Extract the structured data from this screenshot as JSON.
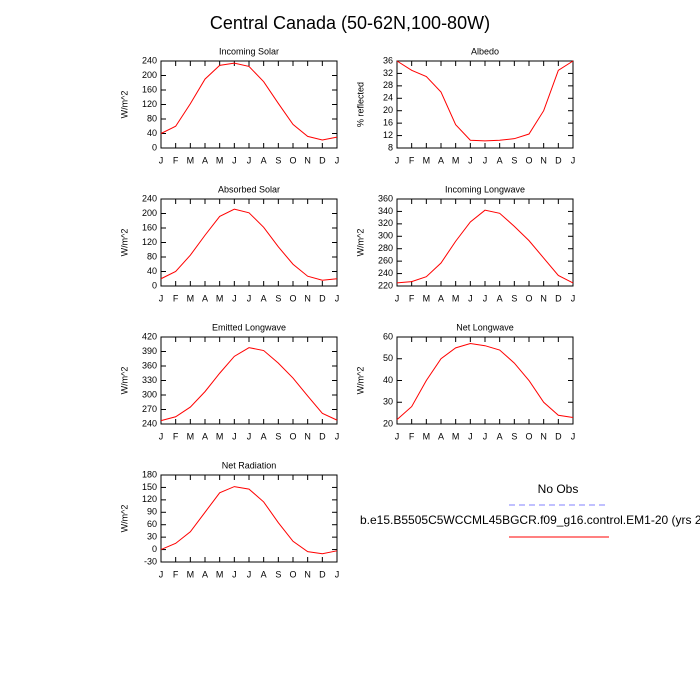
{
  "title": "Central Canada (50-62N,100-80W)",
  "chart_data": [
    {
      "type": "line",
      "title": "Incoming Solar",
      "ylabel": "W/m^2",
      "categories": [
        "J",
        "F",
        "M",
        "A",
        "M",
        "J",
        "J",
        "A",
        "S",
        "O",
        "N",
        "D",
        "J"
      ],
      "series": [
        {
          "color": "#ff0000",
          "values": [
            40,
            60,
            122,
            190,
            228,
            234,
            225,
            183,
            123,
            65,
            32,
            22,
            30
          ]
        }
      ],
      "ylim": [
        0,
        240
      ],
      "yticks": [
        0,
        40,
        80,
        120,
        160,
        200,
        240
      ]
    },
    {
      "type": "line",
      "title": "Albedo",
      "ylabel": "% reflected",
      "categories": [
        "J",
        "F",
        "M",
        "A",
        "M",
        "J",
        "J",
        "A",
        "S",
        "O",
        "N",
        "D",
        "J"
      ],
      "series": [
        {
          "color": "#ff0000",
          "values": [
            36,
            33,
            31,
            26,
            15.5,
            10.5,
            10.3,
            10.5,
            11,
            12.5,
            20,
            33,
            36
          ]
        }
      ],
      "ylim": [
        8,
        36
      ],
      "yticks": [
        8,
        12,
        16,
        20,
        24,
        28,
        32,
        36
      ]
    },
    {
      "type": "line",
      "title": "Absorbed Solar",
      "ylabel": "W/m^2",
      "categories": [
        "J",
        "F",
        "M",
        "A",
        "M",
        "J",
        "J",
        "A",
        "S",
        "O",
        "N",
        "D",
        "J"
      ],
      "series": [
        {
          "color": "#ff0000",
          "values": [
            20,
            40,
            85,
            140,
            192,
            212,
            202,
            162,
            108,
            60,
            27,
            16,
            20
          ]
        }
      ],
      "ylim": [
        0,
        240
      ],
      "yticks": [
        0,
        40,
        80,
        120,
        160,
        200,
        240
      ]
    },
    {
      "type": "line",
      "title": "Incoming Longwave",
      "ylabel": "W/m^2",
      "categories": [
        "J",
        "F",
        "M",
        "A",
        "M",
        "J",
        "J",
        "A",
        "S",
        "O",
        "N",
        "D",
        "J"
      ],
      "series": [
        {
          "color": "#ff0000",
          "values": [
            225,
            227,
            235,
            257,
            292,
            323,
            342,
            337,
            316,
            293,
            265,
            237,
            225
          ]
        }
      ],
      "ylim": [
        220,
        360
      ],
      "yticks": [
        220,
        240,
        260,
        280,
        300,
        320,
        340,
        360
      ]
    },
    {
      "type": "line",
      "title": "Emitted Longwave",
      "ylabel": "W/m^2",
      "categories": [
        "J",
        "F",
        "M",
        "A",
        "M",
        "J",
        "J",
        "A",
        "S",
        "O",
        "N",
        "D",
        "J"
      ],
      "series": [
        {
          "color": "#ff0000",
          "values": [
            247,
            255,
            275,
            307,
            345,
            380,
            398,
            392,
            366,
            335,
            298,
            262,
            248
          ]
        }
      ],
      "ylim": [
        240,
        420
      ],
      "yticks": [
        240,
        270,
        300,
        330,
        360,
        390,
        420
      ]
    },
    {
      "type": "line",
      "title": "Net Longwave",
      "ylabel": "W/m^2",
      "categories": [
        "J",
        "F",
        "M",
        "A",
        "M",
        "J",
        "J",
        "A",
        "S",
        "O",
        "N",
        "D",
        "J"
      ],
      "series": [
        {
          "color": "#ff0000",
          "values": [
            22,
            28,
            40,
            50,
            55,
            57,
            56,
            54,
            48,
            40,
            30,
            24,
            23
          ]
        }
      ],
      "ylim": [
        20,
        60
      ],
      "yticks": [
        20,
        30,
        40,
        50,
        60
      ]
    },
    {
      "type": "line",
      "title": "Net Radiation",
      "ylabel": "W/m^2",
      "categories": [
        "J",
        "F",
        "M",
        "A",
        "M",
        "J",
        "J",
        "A",
        "S",
        "O",
        "N",
        "D",
        "J"
      ],
      "series": [
        {
          "color": "#ff0000",
          "values": [
            0,
            15,
            43,
            90,
            137,
            152,
            146,
            115,
            65,
            20,
            -5,
            -10,
            -3
          ]
        }
      ],
      "ylim": [
        -30,
        180
      ],
      "yticks": [
        -30,
        0,
        30,
        60,
        90,
        120,
        150,
        180
      ]
    }
  ],
  "legend": [
    {
      "name": "No Obs",
      "color": "#8080ff",
      "dash": true
    },
    {
      "name": "b.e15.B5505C5WCCML45BGCR.f09_g16.control.EM1-20 (yrs 2",
      "color": "#ff0000",
      "dash": false
    }
  ]
}
